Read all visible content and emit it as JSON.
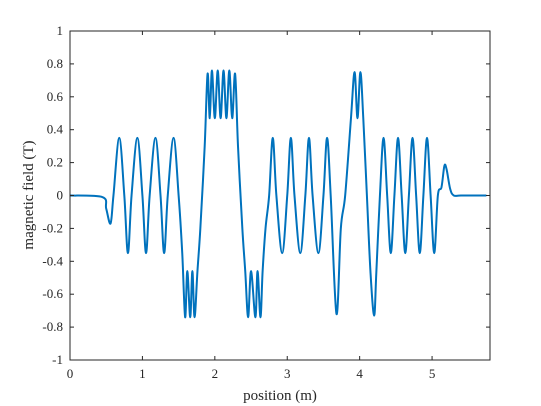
{
  "chart_data": {
    "type": "line",
    "title": "",
    "xlabel": "position (m)",
    "ylabel": "magnetic field (T)",
    "xlim": [
      0,
      5.8
    ],
    "ylim": [
      -1,
      1
    ],
    "xticks": [
      0,
      1,
      2,
      3,
      4,
      5
    ],
    "yticks": [
      -1,
      -0.8,
      -0.6,
      -0.4,
      -0.2,
      0,
      0.2,
      0.4,
      0.6,
      0.8,
      1
    ],
    "xtick_labels": [
      "0",
      "1",
      "2",
      "3",
      "4",
      "5"
    ],
    "ytick_labels": [
      "-1",
      "-0.8",
      "-0.6",
      "-0.4",
      "-0.2",
      "0",
      "0.2",
      "0.4",
      "0.6",
      "0.8",
      "1"
    ],
    "grid": false,
    "line_color": "#0072BD",
    "series": [
      {
        "x": [
          0.0,
          0.45,
          0.5,
          0.56,
          0.6,
          0.68,
          0.75,
          0.8,
          0.85,
          0.93,
          1.0,
          1.05,
          1.1,
          1.18,
          1.25,
          1.3,
          1.35,
          1.43,
          1.5,
          1.55,
          1.59,
          1.62,
          1.66,
          1.69,
          1.72,
          1.76,
          1.8,
          1.86,
          1.9,
          1.93,
          1.96,
          2.0,
          2.04,
          2.08,
          2.12,
          2.16,
          2.2,
          2.24,
          2.28,
          2.32,
          2.38,
          2.42,
          2.46,
          2.5,
          2.56,
          2.59,
          2.63,
          2.66,
          2.7,
          2.75,
          2.8,
          2.85,
          2.93,
          3.0,
          3.05,
          3.1,
          3.18,
          3.25,
          3.3,
          3.35,
          3.43,
          3.5,
          3.55,
          3.6,
          3.68,
          3.74,
          3.8,
          3.88,
          3.93,
          3.97,
          4.01,
          4.05,
          4.1,
          4.15,
          4.2,
          4.23,
          4.28,
          4.33,
          4.38,
          4.43,
          4.48,
          4.53,
          4.58,
          4.63,
          4.68,
          4.73,
          4.78,
          4.83,
          4.88,
          4.93,
          4.98,
          5.03,
          5.08,
          5.13,
          5.17,
          5.2,
          5.25,
          5.3,
          5.4,
          5.75
        ],
        "y": [
          0.0,
          -0.01,
          -0.08,
          -0.17,
          0.0,
          0.35,
          0.0,
          -0.35,
          0.0,
          0.35,
          0.0,
          -0.35,
          0.0,
          0.35,
          0.0,
          -0.35,
          0.0,
          0.35,
          0.0,
          -0.35,
          -0.74,
          -0.46,
          -0.74,
          -0.46,
          -0.74,
          -0.46,
          -0.2,
          0.3,
          0.74,
          0.47,
          0.76,
          0.47,
          0.76,
          0.47,
          0.76,
          0.47,
          0.76,
          0.47,
          0.74,
          0.3,
          -0.2,
          -0.46,
          -0.74,
          -0.46,
          -0.74,
          -0.46,
          -0.74,
          -0.46,
          -0.2,
          0.0,
          0.35,
          0.0,
          -0.35,
          0.0,
          0.35,
          0.0,
          -0.35,
          0.0,
          0.35,
          0.0,
          -0.35,
          0.0,
          0.35,
          0.0,
          -0.72,
          -0.2,
          0.0,
          0.47,
          0.75,
          0.47,
          0.75,
          0.47,
          0.0,
          -0.47,
          -0.73,
          -0.47,
          0.0,
          0.35,
          0.0,
          -0.35,
          0.0,
          0.35,
          0.0,
          -0.35,
          0.0,
          0.35,
          0.0,
          -0.35,
          0.0,
          0.35,
          0.0,
          -0.35,
          0.0,
          0.05,
          0.18,
          0.16,
          0.04,
          0.0,
          0.0,
          0.0
        ]
      }
    ]
  }
}
